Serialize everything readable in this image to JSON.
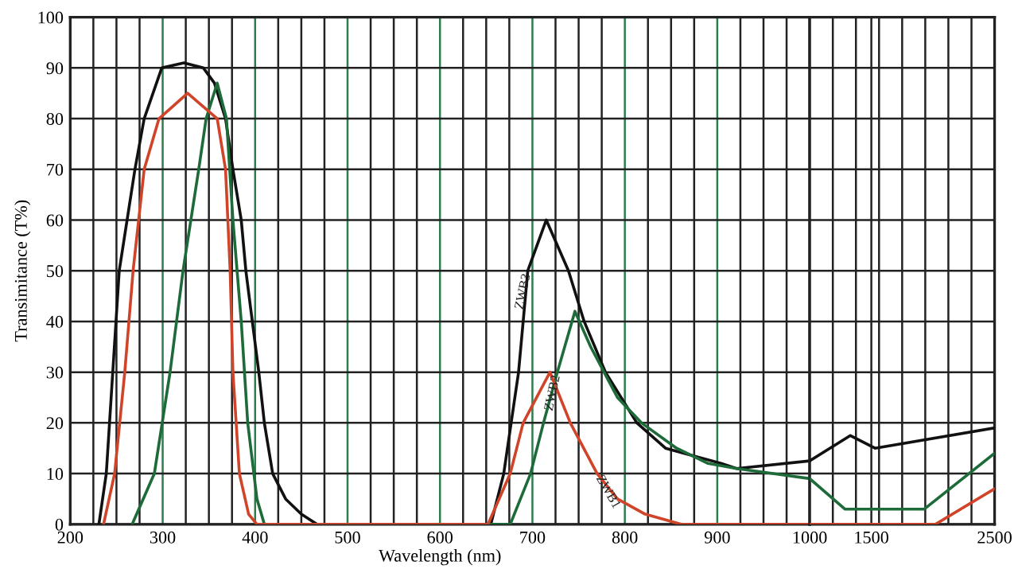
{
  "chart_data": [
    {
      "type": "line",
      "xlabel": "Wavelength (nm)",
      "ylabel": "Transimitance (T%)",
      "series": [
        {
          "name": "ZWB3",
          "color": "#111111",
          "x": [
            231,
            239,
            253,
            270,
            280,
            299,
            323,
            344,
            356,
            368,
            376,
            385,
            390,
            397,
            404,
            410,
            419,
            433,
            450,
            467,
            655,
            669,
            685,
            695,
            715,
            739,
            756,
            779,
            813,
            844,
            904,
            921,
            1000
          ],
          "values": [
            0,
            10,
            50,
            70,
            80,
            90,
            91,
            90,
            87,
            80,
            70,
            60,
            50,
            40,
            30,
            20,
            10,
            5,
            2,
            0,
            0,
            10,
            30,
            50,
            60,
            50,
            40,
            30,
            20,
            15,
            12,
            11,
            12.5
          ]
        },
        {
          "name": "ZWB2",
          "color": "#1e6b3a",
          "x": [
            267,
            291,
            308,
            322,
            339,
            347,
            359,
            369,
            376,
            385,
            392,
            402,
            410,
            676,
            698,
            712,
            727,
            746,
            763,
            792,
            818,
            856,
            890,
            921,
            1000
          ],
          "values": [
            0,
            10,
            30,
            50,
            70,
            80,
            87,
            80,
            60,
            40,
            20,
            5,
            0,
            0,
            10,
            20,
            30,
            42,
            35,
            25,
            20,
            15,
            12,
            11,
            9
          ]
        },
        {
          "name": "ZWB1",
          "color": "#d0452a",
          "x": [
            236,
            248,
            259,
            268,
            280,
            296,
            327,
            359,
            368,
            373,
            376,
            383,
            393,
            402,
            652,
            676,
            690,
            719,
            741,
            770,
            792,
            822,
            861,
            1000
          ],
          "values": [
            0,
            10,
            30,
            50,
            70,
            80,
            85,
            80,
            70,
            50,
            30,
            10,
            2,
            0,
            0,
            10,
            20,
            30,
            20,
            10,
            5,
            2,
            0,
            0
          ]
        }
      ],
      "xlim": [
        200,
        1000
      ],
      "ylim": [
        0,
        100
      ],
      "xticks": [
        200,
        {
          "value": 225,
          "label": null
        },
        {
          "value": 250,
          "label": null
        },
        {
          "value": 275,
          "label": null
        },
        300,
        {
          "value": 325,
          "label": null
        },
        {
          "value": 350,
          "label": null
        },
        {
          "value": 375,
          "label": null
        },
        400,
        {
          "value": 425,
          "label": null
        },
        {
          "value": 450,
          "label": null
        },
        {
          "value": 475,
          "label": null
        },
        500,
        {
          "value": 525,
          "label": null
        },
        {
          "value": 550,
          "label": null
        },
        {
          "value": 575,
          "label": null
        },
        600,
        {
          "value": 625,
          "label": null
        },
        {
          "value": 650,
          "label": null
        },
        {
          "value": 675,
          "label": null
        },
        700,
        {
          "value": 725,
          "label": null
        },
        {
          "value": 750,
          "label": null
        },
        {
          "value": 775,
          "label": null
        },
        800,
        {
          "value": 825,
          "label": null
        },
        {
          "value": 850,
          "label": null
        },
        {
          "value": 875,
          "label": null
        },
        900,
        {
          "value": 925,
          "label": null
        },
        {
          "value": 950,
          "label": null
        },
        {
          "value": 975,
          "label": null
        },
        1000
      ],
      "yticks": [
        0,
        10,
        20,
        30,
        40,
        50,
        60,
        70,
        80,
        90,
        100
      ],
      "grid": true,
      "legend": false,
      "marker": "none",
      "line_style": "solid"
    },
    {
      "type": "line",
      "series": [
        {
          "color": "#111111",
          "x": [
            1000,
            1330,
            1530,
            2500
          ],
          "values": [
            12.5,
            17.5,
            15,
            19
          ]
        },
        {
          "color": "#1e6b3a",
          "x": [
            1000,
            1285,
            1930,
            2500
          ],
          "values": [
            9,
            3,
            3,
            14
          ]
        },
        {
          "color": "#d0452a",
          "x": [
            1000,
            2020,
            2500
          ],
          "values": [
            0,
            0,
            7
          ]
        }
      ],
      "xlim": [
        1000,
        2500
      ],
      "ylim": [
        0,
        100
      ],
      "xticks": [
        {
          "value": 1187.5,
          "label": null
        },
        {
          "value": 1375,
          "label": null
        },
        1500,
        {
          "value": 1562.5,
          "label": null
        },
        {
          "value": 1750,
          "label": null
        },
        {
          "value": 1937.5,
          "label": null
        },
        {
          "value": 2125,
          "label": null
        },
        {
          "value": 2312.5,
          "label": null
        },
        2500
      ],
      "yticks": [
        0,
        10,
        20,
        30,
        40,
        50,
        60,
        70,
        80,
        90,
        100
      ],
      "tick_labels": "x",
      "grid": true,
      "legend": false,
      "marker": "none",
      "line_style": "solid"
    }
  ]
}
